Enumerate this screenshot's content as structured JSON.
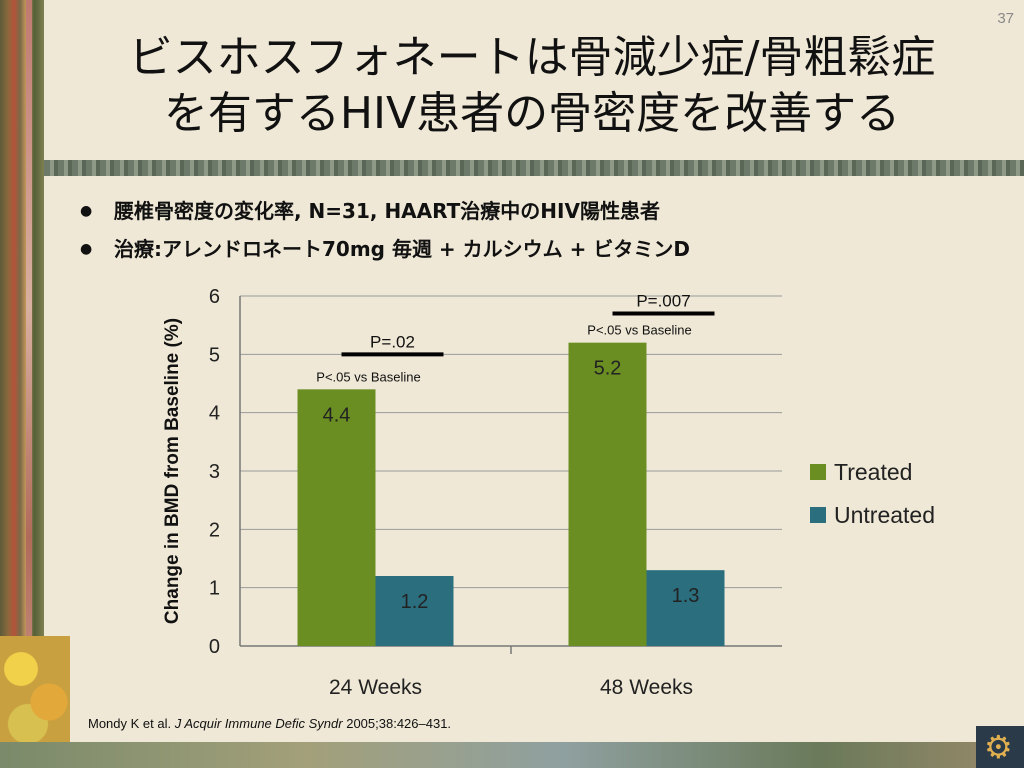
{
  "slide_number": "37",
  "title": {
    "line1": "ビスホスフォネートは骨減少症/骨粗鬆症",
    "line2": "を有するHIV患者の骨密度を改善する"
  },
  "bullets": [
    "腰椎骨密度の変化率, N=31, HAART治療中のHIV陽性患者",
    "治療:アレンドロネート70mg 毎週 + カルシウム + ビタミンD"
  ],
  "colors": {
    "treated": "#6b8e23",
    "untreated": "#2b6f7f"
  },
  "chart_data": {
    "type": "bar",
    "categories": [
      "24 Weeks",
      "48 Weeks"
    ],
    "series": [
      {
        "name": "Treated",
        "values": [
          4.4,
          5.2
        ],
        "labels": [
          "4.4",
          "5.2"
        ]
      },
      {
        "name": "Untreated",
        "values": [
          1.2,
          1.3
        ],
        "labels": [
          "1.2",
          "1.3"
        ]
      }
    ],
    "ylabel": "Change in BMD from Baseline (%)",
    "ylim": [
      0,
      6
    ],
    "yticks": [
      "0",
      "1",
      "2",
      "3",
      "4",
      "5",
      "6"
    ],
    "grid": true,
    "legend_position": "right",
    "annotations": {
      "baseline": [
        "P<.05 vs Baseline",
        "P<.05 vs Baseline"
      ],
      "comparison": [
        "P=.02",
        "P=.007"
      ],
      "comparison_level": [
        5.0,
        5.7
      ]
    }
  },
  "citation": {
    "authors": "Mondy K et al.",
    "journal": "J Acquir Immune Defic Syndr",
    "details": "2005;38:426–431."
  }
}
